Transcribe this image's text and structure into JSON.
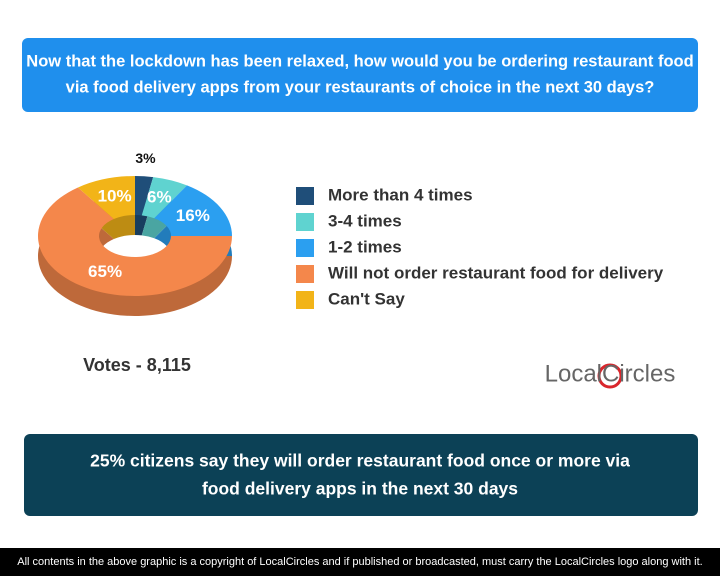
{
  "header": {
    "lines": [
      "Now that the lockdown has been relaxed, how would you be ordering restaurant food",
      "via food delivery apps from your restaurants of choice in the next 30 days?"
    ]
  },
  "chart_data": {
    "type": "pie",
    "categories": [
      "More than 4 times",
      "3-4 times",
      "1-2 times",
      "Will not order restaurant food for delivery",
      "Can't Say"
    ],
    "values": [
      3,
      6,
      16,
      65,
      10
    ],
    "value_labels": [
      "3%",
      "6%",
      "16%",
      "65%",
      "10%"
    ],
    "colors": [
      "#1f4e79",
      "#5fd3d0",
      "#2b9ff0",
      "#f4874b",
      "#f2b418"
    ],
    "legend": "right"
  },
  "votes": "Votes - 8,115",
  "logo": "LocalCircles",
  "summary": {
    "lines": [
      "25% citizens say they will order restaurant food once or more via",
      "food delivery apps in the next 30 days"
    ]
  },
  "footer": "All contents in the above graphic is a copyright of LocalCircles and if published or broadcasted, must carry the LocalCircles logo along with it."
}
